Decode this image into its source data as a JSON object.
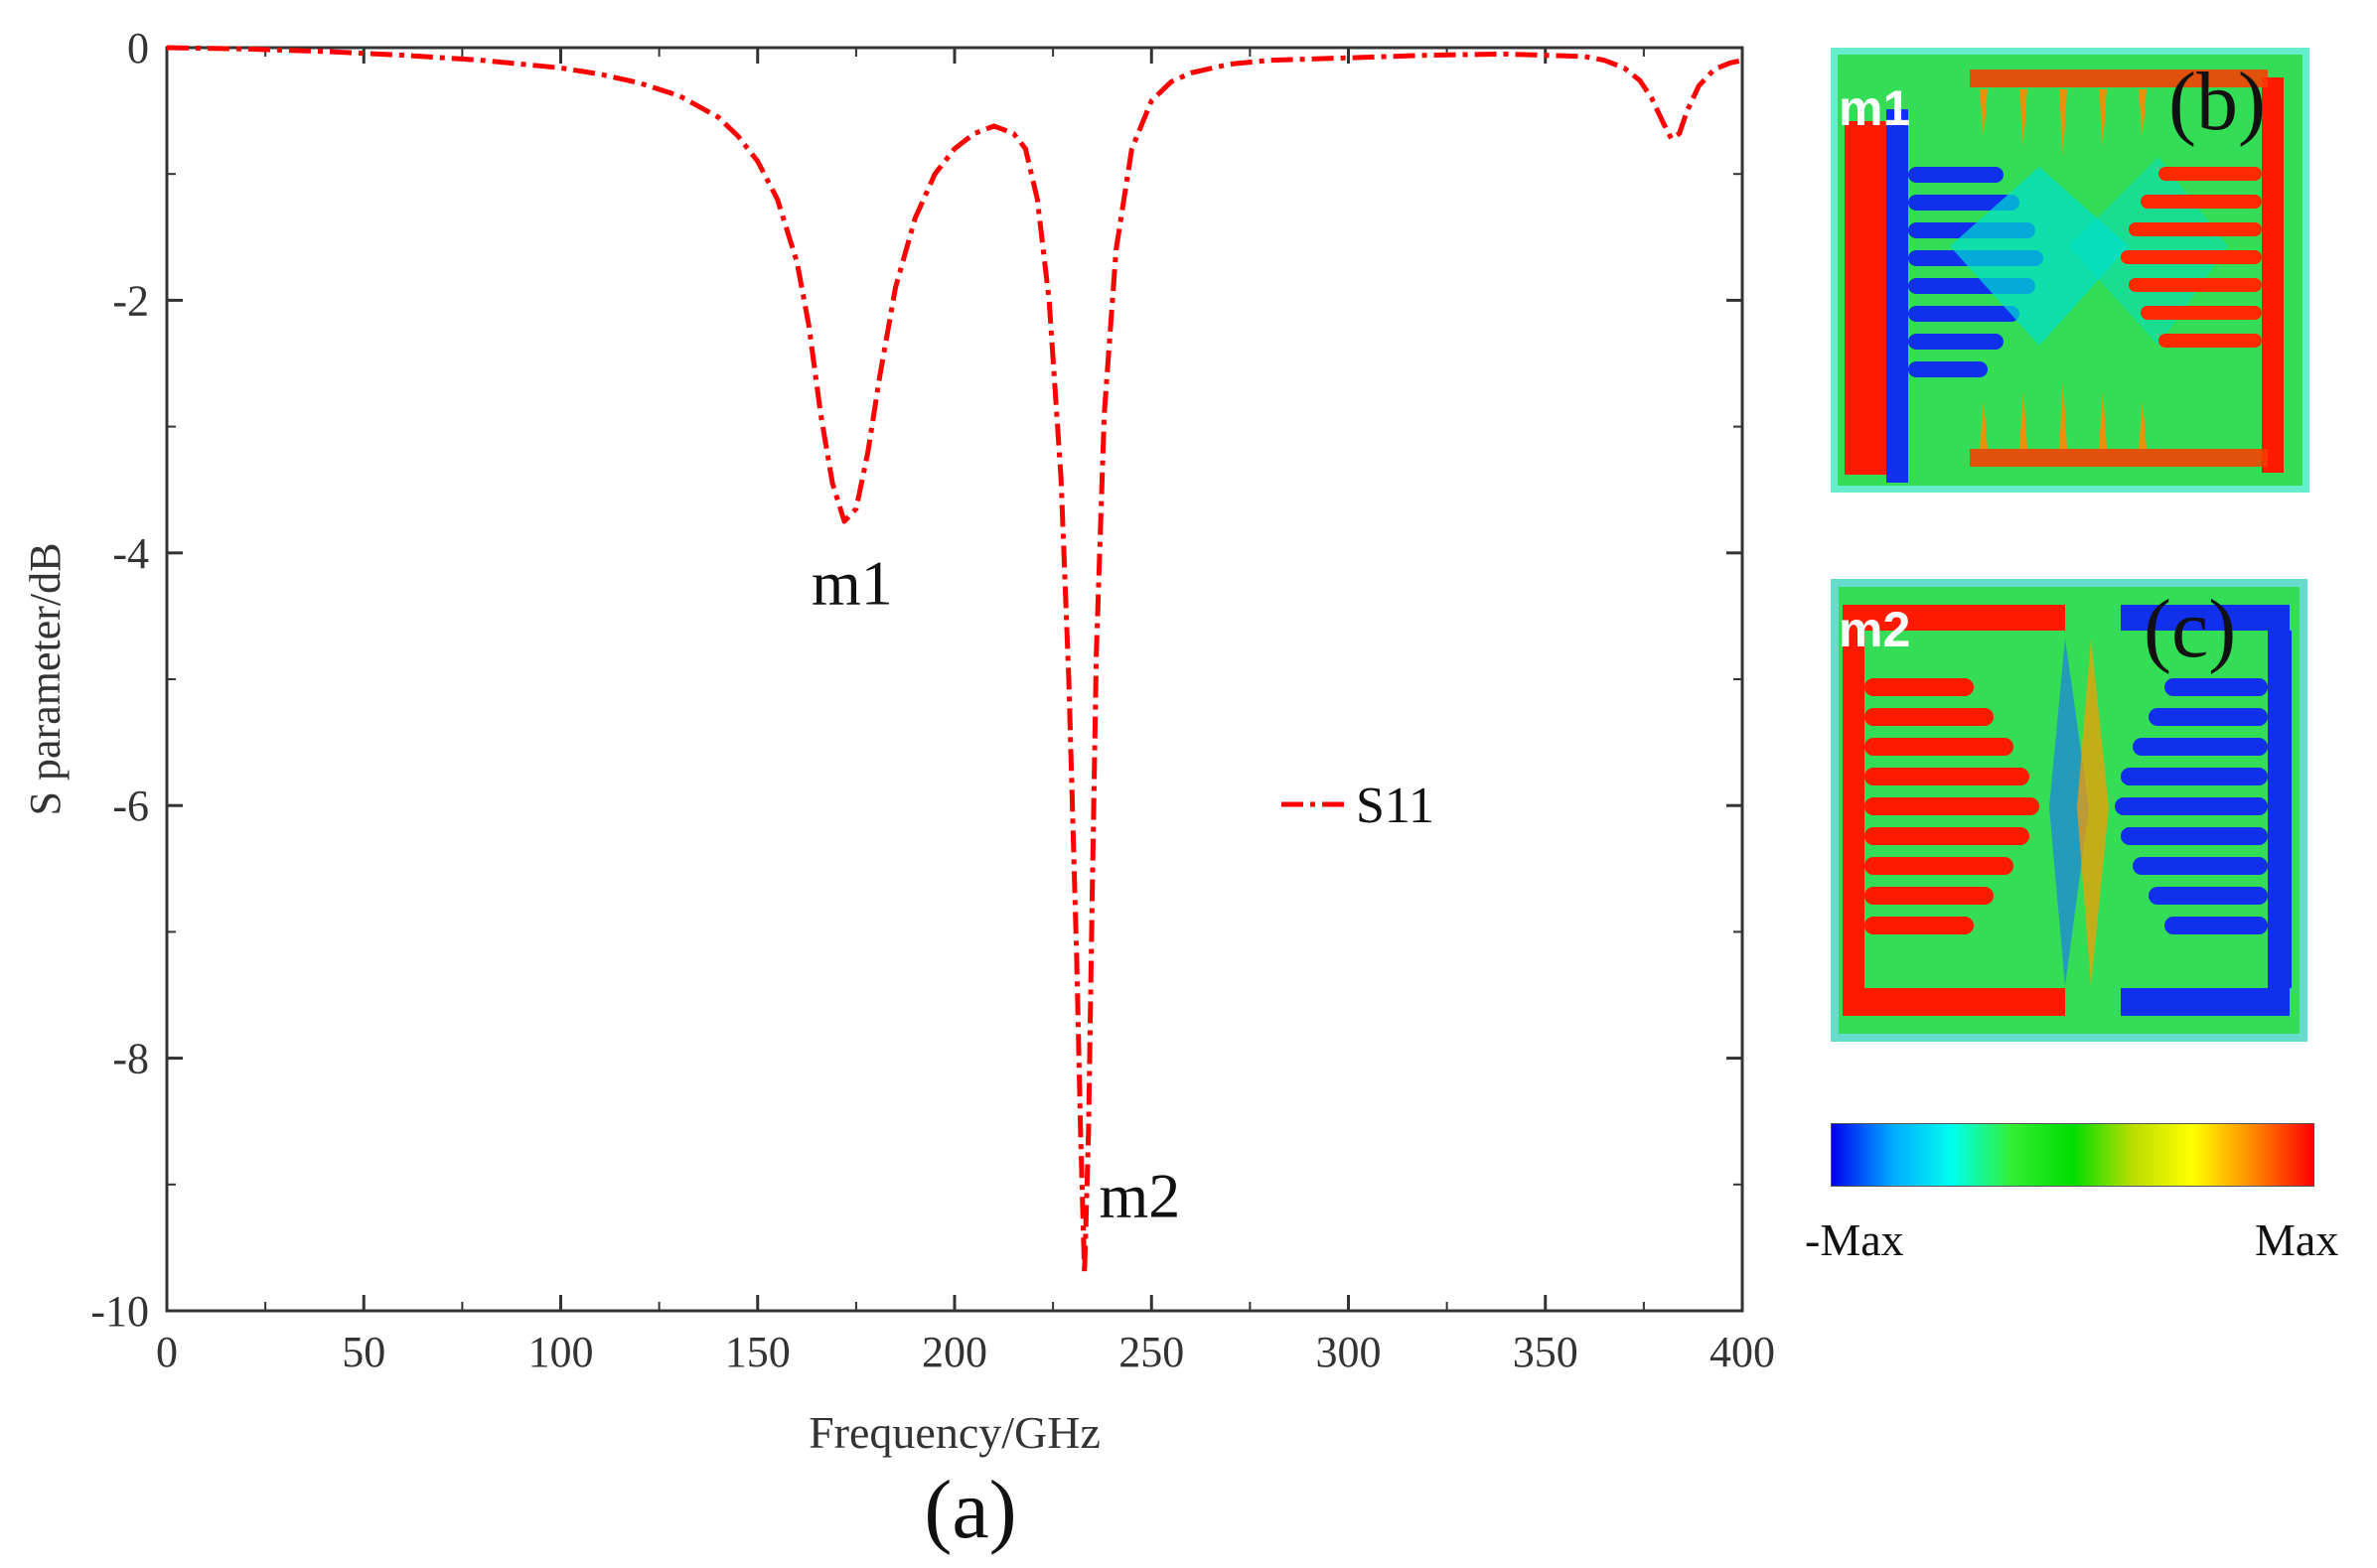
{
  "chart_data": {
    "type": "line",
    "xlabel": "Frequency/GHz",
    "ylabel": "S  parameter/dB",
    "xlim": [
      0,
      400
    ],
    "ylim": [
      -10,
      0
    ],
    "xticks": [
      "0",
      "50",
      "100",
      "150",
      "200",
      "250",
      "300",
      "350",
      "400"
    ],
    "yticks": [
      "0",
      "-2",
      "-4",
      "-6",
      "-8",
      "-10"
    ],
    "grid": false,
    "legend_position": "right-middle",
    "series": [
      {
        "name": "S11",
        "color": "#ff0000",
        "style": "dash-dot",
        "x": [
          0,
          20,
          40,
          60,
          80,
          100,
          110,
          120,
          130,
          140,
          145,
          150,
          155,
          160,
          163,
          166,
          169,
          172,
          175,
          178,
          181,
          185,
          190,
          195,
          200,
          205,
          210,
          215,
          218,
          221,
          224,
          227,
          229,
          231,
          232,
          233,
          234,
          235,
          236,
          238,
          241,
          245,
          250,
          255,
          260,
          270,
          280,
          300,
          320,
          340,
          360,
          365,
          370,
          374,
          377,
          380,
          382,
          384,
          386,
          389,
          393,
          397,
          400
        ],
        "y": [
          0,
          -0.01,
          -0.03,
          -0.06,
          -0.1,
          -0.16,
          -0.21,
          -0.28,
          -0.38,
          -0.55,
          -0.7,
          -0.9,
          -1.2,
          -1.7,
          -2.2,
          -2.9,
          -3.45,
          -3.75,
          -3.65,
          -3.2,
          -2.6,
          -1.9,
          -1.35,
          -1.0,
          -0.8,
          -0.68,
          -0.62,
          -0.68,
          -0.8,
          -1.2,
          -2.0,
          -3.4,
          -5.0,
          -7.2,
          -8.6,
          -9.7,
          -8.6,
          -6.6,
          -4.8,
          -2.9,
          -1.6,
          -0.8,
          -0.42,
          -0.27,
          -0.2,
          -0.13,
          -0.1,
          -0.08,
          -0.06,
          -0.05,
          -0.07,
          -0.1,
          -0.16,
          -0.26,
          -0.4,
          -0.6,
          -0.72,
          -0.68,
          -0.5,
          -0.3,
          -0.17,
          -0.12,
          -0.1
        ]
      }
    ],
    "annotations": [
      {
        "text": "m1",
        "x": 174,
        "y": -4.25
      },
      {
        "text": "m2",
        "x": 247,
        "y": -9.1
      }
    ],
    "caption": "(a)"
  },
  "panels": {
    "b": {
      "tag": "m1",
      "letter": "(b)"
    },
    "c": {
      "tag": "m2",
      "letter": "(c)"
    }
  },
  "colorbar": {
    "min_label": "-Max",
    "max_label": "Max",
    "colors": [
      "#0000ee",
      "#00aaff",
      "#00ffee",
      "#33ee33",
      "#00dd00",
      "#bbdd00",
      "#ffff00",
      "#ff8800",
      "#ff0000"
    ]
  }
}
